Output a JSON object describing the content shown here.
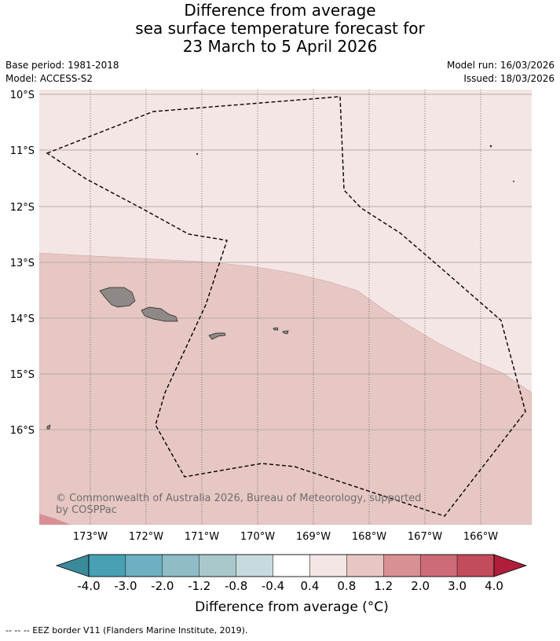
{
  "title": {
    "line1": "Difference from average",
    "line2": "sea surface temperature forecast for",
    "line3": "23 March to 5 April 2026"
  },
  "meta": {
    "base_period": "Base period: 1981-2018",
    "model": "Model: ACCESS-S2",
    "model_run": "Model run: 16/03/2026",
    "issued": "Issued: 18/03/2026"
  },
  "map": {
    "lat_labels": [
      "10°S",
      "11°S",
      "12°S",
      "13°S",
      "14°S",
      "15°S",
      "16°S"
    ],
    "lon_labels": [
      "173°W",
      "172°W",
      "171°W",
      "170°W",
      "169°W",
      "168°W",
      "167°W",
      "166°W"
    ],
    "copyright_line1": "© Commonwealth of Australia 2026, Bureau of Meteorology, supported",
    "copyright_line2": "by COSPPac",
    "colors": {
      "band_0_4_0_8": "#f4e6e5",
      "band_0_8_1_2": "#e7c7c3",
      "band_1_2_2_0": "#d89095",
      "land": "#8e8987",
      "eez": "#000000"
    }
  },
  "colorbar": {
    "tick_labels": [
      "-4.0",
      "-3.0",
      "-2.0",
      "-1.2",
      "-0.8",
      "-0.4",
      "0.4",
      "0.8",
      "1.2",
      "2.0",
      "3.0",
      "4.0"
    ],
    "colors": [
      "#47a0b3",
      "#6cb0c1",
      "#8fbcc6",
      "#a9c8cc",
      "#c8dadd",
      "#ffffff",
      "#f4e6e5",
      "#e7c7c3",
      "#d89095",
      "#cd6b78",
      "#c24b5c"
    ],
    "low_extend_color": "#3a8a9a",
    "high_extend_color": "#b01e3c",
    "title": "Difference from average (°C)"
  },
  "footnote": "--  --  -- EEZ border V11 (Flanders Marine Institute, 2019)."
}
